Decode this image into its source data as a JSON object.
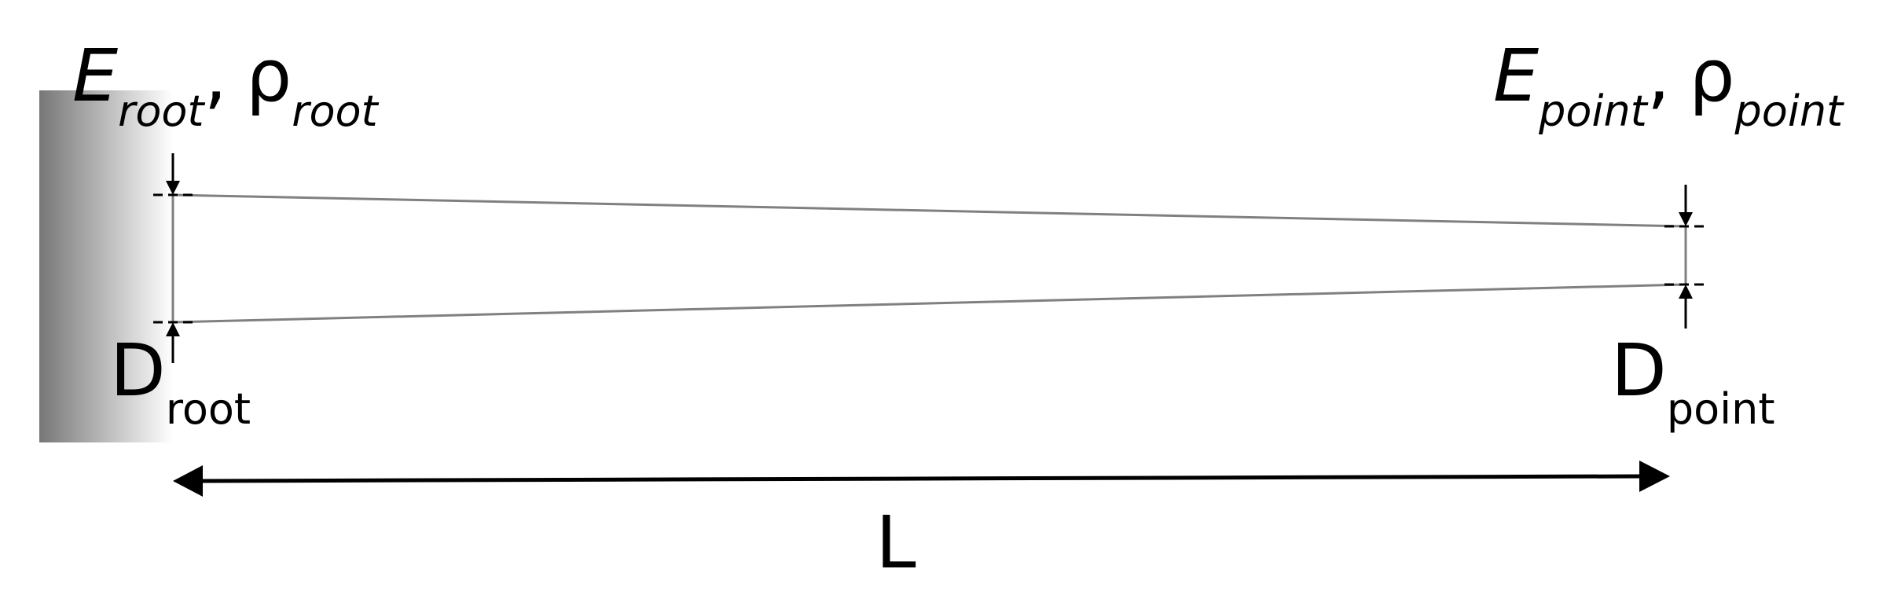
{
  "labels": {
    "root_material": {
      "modulus_symbol": "E",
      "modulus_sub": "root",
      "separator": ",",
      "density_symbol": "ρ",
      "density_sub": "root"
    },
    "point_material": {
      "modulus_symbol": "E",
      "modulus_sub": "point",
      "separator": ",",
      "density_symbol": "ρ",
      "density_sub": "point"
    },
    "root_diameter": {
      "symbol": "D",
      "sub": "root"
    },
    "point_diameter": {
      "symbol": "D",
      "sub": "point"
    },
    "length": "L"
  },
  "colors": {
    "wall_dark": "#777777",
    "wall_light": "#ffffff",
    "beam_line": "#808080",
    "dimension": "#000000",
    "text": "#000000"
  }
}
